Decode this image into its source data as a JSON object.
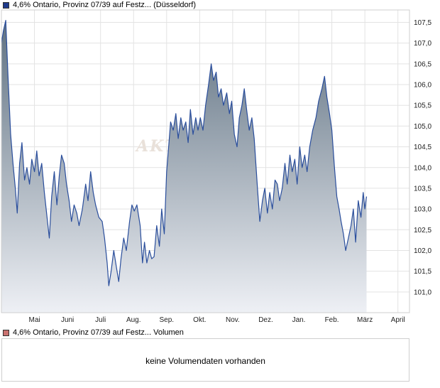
{
  "legend": {
    "price": "4,6% Ontario, Provinz 07/39 auf Festz... (Düsseldorf)",
    "volume": "4,6% Ontario, Provinz 07/39 auf Festz... Volumen",
    "price_color": "#1f3b8c",
    "volume_color": "#c9716f"
  },
  "watermark": "AKTI",
  "volume_panel": {
    "message": "keine Volumendaten vorhanden"
  },
  "colors": {
    "line": "#2a4e9c",
    "fill_top": "#5f7181",
    "fill_bottom": "#eef0f5",
    "grid": "#e3e3e3",
    "border": "#cfcfcf"
  },
  "chart_data": {
    "type": "area",
    "ylim": [
      100.5,
      107.8
    ],
    "yticks": [
      101.0,
      101.5,
      102.0,
      102.5,
      103.0,
      103.5,
      104.0,
      104.5,
      105.0,
      105.5,
      106.0,
      106.5,
      107.0,
      107.5
    ],
    "ytick_labels": [
      "101,0",
      "101,5",
      "102,0",
      "102,5",
      "103,0",
      "103,5",
      "104,0",
      "104,5",
      "105,0",
      "105,5",
      "106,0",
      "106,5",
      "107,0",
      "107,5"
    ],
    "x_range": [
      0,
      12.35
    ],
    "x_ticks": [
      {
        "pos": 1,
        "label": "Mai"
      },
      {
        "pos": 2,
        "label": "Juni"
      },
      {
        "pos": 3,
        "label": "Juli"
      },
      {
        "pos": 4,
        "label": "Aug."
      },
      {
        "pos": 5,
        "label": "Sep."
      },
      {
        "pos": 6,
        "label": "Okt."
      },
      {
        "pos": 7,
        "label": "Nov."
      },
      {
        "pos": 8,
        "label": "Dez."
      },
      {
        "pos": 9,
        "label": "Jan."
      },
      {
        "pos": 10,
        "label": "Feb."
      },
      {
        "pos": 11,
        "label": "März"
      },
      {
        "pos": 12,
        "label": "April"
      }
    ],
    "x_unit": "months since start of April",
    "series": [
      {
        "values": [
          [
            0.0,
            107.0
          ],
          [
            0.06,
            107.3
          ],
          [
            0.13,
            107.55
          ],
          [
            0.2,
            106.2
          ],
          [
            0.28,
            104.8
          ],
          [
            0.35,
            104.1
          ],
          [
            0.42,
            103.5
          ],
          [
            0.48,
            102.9
          ],
          [
            0.55,
            104.1
          ],
          [
            0.62,
            104.6
          ],
          [
            0.7,
            103.7
          ],
          [
            0.77,
            104.0
          ],
          [
            0.85,
            103.6
          ],
          [
            0.92,
            104.2
          ],
          [
            1.0,
            103.9
          ],
          [
            1.07,
            104.4
          ],
          [
            1.14,
            103.8
          ],
          [
            1.22,
            104.1
          ],
          [
            1.3,
            103.4
          ],
          [
            1.38,
            102.8
          ],
          [
            1.45,
            102.3
          ],
          [
            1.52,
            103.3
          ],
          [
            1.6,
            103.9
          ],
          [
            1.68,
            103.1
          ],
          [
            1.75,
            103.8
          ],
          [
            1.82,
            104.3
          ],
          [
            1.9,
            104.1
          ],
          [
            1.97,
            103.6
          ],
          [
            2.05,
            103.2
          ],
          [
            2.12,
            102.7
          ],
          [
            2.2,
            103.1
          ],
          [
            2.28,
            102.9
          ],
          [
            2.35,
            102.6
          ],
          [
            2.45,
            103.0
          ],
          [
            2.55,
            103.6
          ],
          [
            2.62,
            103.2
          ],
          [
            2.7,
            103.9
          ],
          [
            2.78,
            103.4
          ],
          [
            2.85,
            103.1
          ],
          [
            2.95,
            102.8
          ],
          [
            3.05,
            102.7
          ],
          [
            3.12,
            102.3
          ],
          [
            3.2,
            101.7
          ],
          [
            3.25,
            101.15
          ],
          [
            3.32,
            101.5
          ],
          [
            3.4,
            102.0
          ],
          [
            3.48,
            101.6
          ],
          [
            3.55,
            101.25
          ],
          [
            3.62,
            101.8
          ],
          [
            3.7,
            102.3
          ],
          [
            3.78,
            102.0
          ],
          [
            3.88,
            102.7
          ],
          [
            3.95,
            103.1
          ],
          [
            4.02,
            102.95
          ],
          [
            4.1,
            103.1
          ],
          [
            4.2,
            102.6
          ],
          [
            4.27,
            101.7
          ],
          [
            4.33,
            102.2
          ],
          [
            4.4,
            101.7
          ],
          [
            4.48,
            102.0
          ],
          [
            4.55,
            101.8
          ],
          [
            4.62,
            101.85
          ],
          [
            4.7,
            102.6
          ],
          [
            4.78,
            102.1
          ],
          [
            4.85,
            103.0
          ],
          [
            4.93,
            102.4
          ],
          [
            5.0,
            103.9
          ],
          [
            5.07,
            104.6
          ],
          [
            5.12,
            105.1
          ],
          [
            5.2,
            104.9
          ],
          [
            5.28,
            105.3
          ],
          [
            5.35,
            104.7
          ],
          [
            5.43,
            105.2
          ],
          [
            5.5,
            104.9
          ],
          [
            5.58,
            105.1
          ],
          [
            5.65,
            104.6
          ],
          [
            5.72,
            105.4
          ],
          [
            5.8,
            104.8
          ],
          [
            5.88,
            105.2
          ],
          [
            5.95,
            104.9
          ],
          [
            6.02,
            105.2
          ],
          [
            6.1,
            104.9
          ],
          [
            6.18,
            105.5
          ],
          [
            6.27,
            106.0
          ],
          [
            6.35,
            106.5
          ],
          [
            6.42,
            106.1
          ],
          [
            6.5,
            106.3
          ],
          [
            6.57,
            105.7
          ],
          [
            6.65,
            105.9
          ],
          [
            6.72,
            105.5
          ],
          [
            6.82,
            105.8
          ],
          [
            6.9,
            105.3
          ],
          [
            6.97,
            105.6
          ],
          [
            7.05,
            104.8
          ],
          [
            7.13,
            104.5
          ],
          [
            7.2,
            105.2
          ],
          [
            7.28,
            105.5
          ],
          [
            7.35,
            105.9
          ],
          [
            7.42,
            105.4
          ],
          [
            7.5,
            104.9
          ],
          [
            7.58,
            105.2
          ],
          [
            7.65,
            104.7
          ],
          [
            7.75,
            103.5
          ],
          [
            7.82,
            102.7
          ],
          [
            7.9,
            103.2
          ],
          [
            7.97,
            103.5
          ],
          [
            8.05,
            102.9
          ],
          [
            8.12,
            103.4
          ],
          [
            8.2,
            103.0
          ],
          [
            8.28,
            103.7
          ],
          [
            8.35,
            103.6
          ],
          [
            8.42,
            103.2
          ],
          [
            8.5,
            103.5
          ],
          [
            8.58,
            104.1
          ],
          [
            8.65,
            103.6
          ],
          [
            8.73,
            104.3
          ],
          [
            8.8,
            103.9
          ],
          [
            8.88,
            104.2
          ],
          [
            8.95,
            103.6
          ],
          [
            9.03,
            104.5
          ],
          [
            9.1,
            104.0
          ],
          [
            9.18,
            104.3
          ],
          [
            9.25,
            103.9
          ],
          [
            9.33,
            104.5
          ],
          [
            9.42,
            104.9
          ],
          [
            9.52,
            105.2
          ],
          [
            9.6,
            105.6
          ],
          [
            9.7,
            105.9
          ],
          [
            9.78,
            106.2
          ],
          [
            9.85,
            105.7
          ],
          [
            9.93,
            105.3
          ],
          [
            10.0,
            104.9
          ],
          [
            10.08,
            104.0
          ],
          [
            10.15,
            103.3
          ],
          [
            10.22,
            103.0
          ],
          [
            10.28,
            102.7
          ],
          [
            10.35,
            102.4
          ],
          [
            10.42,
            102.0
          ],
          [
            10.5,
            102.3
          ],
          [
            10.58,
            102.6
          ],
          [
            10.65,
            103.0
          ],
          [
            10.72,
            102.2
          ],
          [
            10.8,
            103.2
          ],
          [
            10.88,
            102.8
          ],
          [
            10.95,
            103.4
          ],
          [
            11.0,
            103.0
          ],
          [
            11.05,
            103.3
          ]
        ]
      }
    ]
  }
}
